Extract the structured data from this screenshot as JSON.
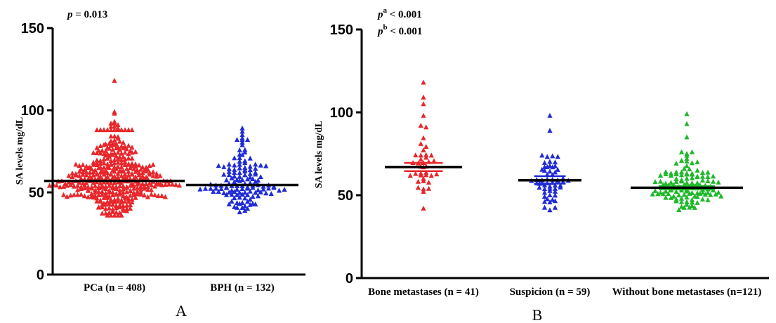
{
  "chart_data": [
    {
      "type": "scatter",
      "panel_label": "A",
      "ylabel": "SA levels mg/dL",
      "ylim": [
        0,
        150
      ],
      "yticks": [
        0,
        50,
        100,
        150
      ],
      "annotations": [
        {
          "italic": "p",
          "text": " = 0.013"
        }
      ],
      "categories": [
        "PCa (n = 408)",
        "BPH (n = 132)"
      ],
      "series": [
        {
          "category": "PCa (n = 408)",
          "color": "#e8262a",
          "n": 408,
          "median": 57,
          "min": 36,
          "max": 118,
          "outliers": [
            118,
            99,
            98,
            93,
            92,
            92,
            91,
            90,
            90,
            89,
            88
          ]
        },
        {
          "category": "BPH (n = 132)",
          "color": "#1f2bd6",
          "n": 132,
          "median": 54.5,
          "min": 38,
          "max": 89,
          "outliers": [
            89,
            87,
            85,
            83,
            82
          ]
        }
      ]
    },
    {
      "type": "scatter",
      "panel_label": "B",
      "ylabel": "SA levels mg/dL",
      "ylim": [
        0,
        150
      ],
      "yticks": [
        0,
        50,
        100,
        150
      ],
      "annotations": [
        {
          "italic": "p",
          "sup": "a",
          "text": " < 0.001"
        },
        {
          "italic": "p",
          "sup": "b",
          "text": " < 0.001"
        }
      ],
      "categories": [
        "Bone metastases (n = 41)",
        "Suspicion (n = 59)",
        "Without bone metastases (n=121)"
      ],
      "series": [
        {
          "category": "Bone metastases (n = 41)",
          "color": "#e8262a",
          "n": 41,
          "median": 67,
          "sem_band": [
            64.5,
            69.5
          ],
          "min": 42,
          "max": 118,
          "outliers": [
            118,
            109,
            105,
            98,
            92,
            91
          ]
        },
        {
          "category": "Suspicion (n = 59)",
          "color": "#1f2bd6",
          "n": 59,
          "median": 59,
          "sem_band": [
            57,
            61.5
          ],
          "min": 41,
          "max": 98,
          "outliers": [
            98,
            89,
            74
          ]
        },
        {
          "category": "Without bone metastases (n=121)",
          "color": "#1fb82a",
          "n": 121,
          "median": 54.5,
          "sem_band": [
            53.5,
            55.5
          ],
          "min": 39,
          "max": 99,
          "outliers": [
            99,
            93,
            85,
            76
          ]
        }
      ]
    }
  ]
}
